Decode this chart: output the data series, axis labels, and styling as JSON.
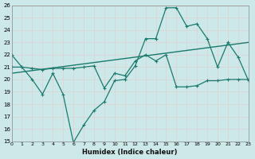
{
  "xlabel": "Humidex (Indice chaleur)",
  "ylabel": "",
  "bg_color": "#cce8e8",
  "grid_color": "#b8d8d8",
  "line_color": "#1a7a6e",
  "xmin": 0,
  "xmax": 23,
  "ymin": 15,
  "ymax": 26,
  "xtick_labels": [
    "0",
    "1",
    "2",
    "3",
    "4",
    "5",
    "6",
    "7",
    "8",
    "9",
    "10",
    "11",
    "12",
    "13",
    "14",
    "15",
    "16",
    "17",
    "18",
    "19",
    "20",
    "21",
    "22",
    "23"
  ],
  "series1_x": [
    0,
    1,
    2,
    3,
    4,
    5,
    6,
    7,
    8,
    9,
    10,
    11,
    12,
    13,
    14,
    15,
    16,
    17,
    18,
    19,
    20,
    21,
    22,
    23
  ],
  "series1_y": [
    22,
    21,
    20,
    18.8,
    20.5,
    18.8,
    14.9,
    16.3,
    17.5,
    18.2,
    19.9,
    20.0,
    21.1,
    23.3,
    23.3,
    25.8,
    25.8,
    24.3,
    24.5,
    23.3,
    21.0,
    23.0,
    21.8,
    19.9
  ],
  "series2_x": [
    0,
    1,
    2,
    3,
    4,
    5,
    6,
    7,
    8,
    9,
    10,
    11,
    12,
    13,
    14,
    15,
    16,
    17,
    18,
    19,
    20,
    21,
    22,
    23
  ],
  "series2_y": [
    21.0,
    21.0,
    20.9,
    20.8,
    20.9,
    20.9,
    20.9,
    21.0,
    21.1,
    19.3,
    20.5,
    20.3,
    21.5,
    22.0,
    21.5,
    22.0,
    19.4,
    19.4,
    19.5,
    19.9,
    19.9,
    20.0,
    20.0,
    20.0
  ],
  "series3_x": [
    0,
    23
  ],
  "series3_y": [
    20.5,
    23.0
  ]
}
